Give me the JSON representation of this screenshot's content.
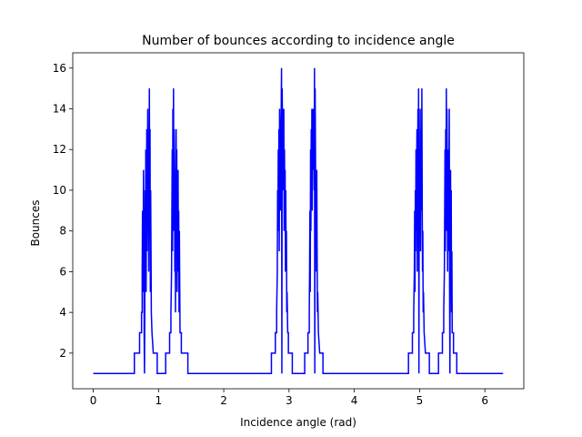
{
  "chart_data": {
    "type": "line",
    "title": "Number of bounces according to incidence angle",
    "xlabel": "Incidence angle (rad)",
    "ylabel": "Bounces",
    "xlim": [
      -0.314,
      6.597
    ],
    "ylim": [
      0.25,
      16.75
    ],
    "xticks": [
      0,
      1,
      2,
      3,
      4,
      5,
      6
    ],
    "yticks": [
      2,
      4,
      6,
      8,
      10,
      12,
      14,
      16
    ],
    "grid": false,
    "legend": "none",
    "series": [
      {
        "color": "#0000ff",
        "step": true,
        "points": [
          [
            0.0,
            1
          ],
          [
            0.63,
            1
          ],
          [
            0.63,
            2
          ],
          [
            0.71,
            2
          ],
          [
            0.71,
            3
          ],
          [
            0.74,
            3
          ],
          [
            0.74,
            4
          ],
          [
            0.75,
            4
          ],
          [
            0.75,
            6
          ],
          [
            0.755,
            9
          ],
          [
            0.76,
            5
          ],
          [
            0.765,
            7
          ],
          [
            0.77,
            11
          ],
          [
            0.775,
            8
          ],
          [
            0.78,
            3
          ],
          [
            0.785,
            1
          ],
          [
            0.79,
            4
          ],
          [
            0.795,
            10
          ],
          [
            0.8,
            6
          ],
          [
            0.805,
            12
          ],
          [
            0.81,
            5
          ],
          [
            0.815,
            9
          ],
          [
            0.82,
            13
          ],
          [
            0.825,
            7
          ],
          [
            0.83,
            10
          ],
          [
            0.835,
            14
          ],
          [
            0.84,
            8
          ],
          [
            0.845,
            12
          ],
          [
            0.85,
            6
          ],
          [
            0.855,
            11
          ],
          [
            0.86,
            15
          ],
          [
            0.865,
            9
          ],
          [
            0.87,
            13
          ],
          [
            0.875,
            5
          ],
          [
            0.88,
            10
          ],
          [
            0.885,
            7
          ],
          [
            0.89,
            4
          ],
          [
            0.9,
            3
          ],
          [
            0.92,
            2
          ],
          [
            0.98,
            2
          ],
          [
            0.98,
            1
          ],
          [
            1.11,
            1
          ],
          [
            1.11,
            2
          ],
          [
            1.17,
            2
          ],
          [
            1.17,
            3
          ],
          [
            1.19,
            3
          ],
          [
            1.19,
            4
          ],
          [
            1.2,
            6
          ],
          [
            1.205,
            9
          ],
          [
            1.21,
            12
          ],
          [
            1.215,
            7
          ],
          [
            1.22,
            14
          ],
          [
            1.225,
            10
          ],
          [
            1.23,
            15
          ],
          [
            1.235,
            8
          ],
          [
            1.24,
            13
          ],
          [
            1.245,
            11
          ],
          [
            1.25,
            6
          ],
          [
            1.255,
            9
          ],
          [
            1.26,
            4
          ],
          [
            1.265,
            10
          ],
          [
            1.27,
            13
          ],
          [
            1.275,
            7
          ],
          [
            1.28,
            12
          ],
          [
            1.285,
            5
          ],
          [
            1.29,
            10
          ],
          [
            1.295,
            8
          ],
          [
            1.3,
            11
          ],
          [
            1.305,
            6
          ],
          [
            1.31,
            9
          ],
          [
            1.315,
            4
          ],
          [
            1.32,
            8
          ],
          [
            1.33,
            3
          ],
          [
            1.35,
            3
          ],
          [
            1.35,
            2
          ],
          [
            1.45,
            2
          ],
          [
            1.45,
            1
          ],
          [
            2.73,
            1
          ],
          [
            2.73,
            2
          ],
          [
            2.79,
            2
          ],
          [
            2.79,
            3
          ],
          [
            2.81,
            3
          ],
          [
            2.81,
            4
          ],
          [
            2.82,
            6
          ],
          [
            2.825,
            10
          ],
          [
            2.83,
            8
          ],
          [
            2.835,
            12
          ],
          [
            2.84,
            9
          ],
          [
            2.845,
            13
          ],
          [
            2.85,
            7
          ],
          [
            2.855,
            14
          ],
          [
            2.86,
            11
          ],
          [
            2.865,
            12
          ],
          [
            2.87,
            9
          ],
          [
            2.875,
            13
          ],
          [
            2.88,
            14
          ],
          [
            2.885,
            16
          ],
          [
            2.89,
            1
          ],
          [
            2.895,
            15
          ],
          [
            2.9,
            13
          ],
          [
            2.905,
            10
          ],
          [
            2.91,
            14
          ],
          [
            2.915,
            11
          ],
          [
            2.92,
            14
          ],
          [
            2.925,
            8
          ],
          [
            2.93,
            12
          ],
          [
            2.935,
            9
          ],
          [
            2.94,
            11
          ],
          [
            2.945,
            6
          ],
          [
            2.95,
            10
          ],
          [
            2.955,
            7
          ],
          [
            2.96,
            8
          ],
          [
            2.965,
            4
          ],
          [
            2.97,
            5
          ],
          [
            2.98,
            3
          ],
          [
            2.99,
            3
          ],
          [
            2.99,
            2
          ],
          [
            3.05,
            2
          ],
          [
            3.05,
            1
          ],
          [
            3.08,
            1
          ],
          [
            3.24,
            1
          ],
          [
            3.24,
            2
          ],
          [
            3.29,
            2
          ],
          [
            3.29,
            3
          ],
          [
            3.31,
            3
          ],
          [
            3.31,
            4
          ],
          [
            3.315,
            6
          ],
          [
            3.32,
            9
          ],
          [
            3.325,
            5
          ],
          [
            3.33,
            12
          ],
          [
            3.335,
            8
          ],
          [
            3.34,
            13
          ],
          [
            3.345,
            10
          ],
          [
            3.35,
            14
          ],
          [
            3.355,
            9
          ],
          [
            3.36,
            12
          ],
          [
            3.365,
            14
          ],
          [
            3.37,
            11
          ],
          [
            3.375,
            13
          ],
          [
            3.38,
            14
          ],
          [
            3.385,
            10
          ],
          [
            3.39,
            16
          ],
          [
            3.395,
            1
          ],
          [
            3.4,
            15
          ],
          [
            3.405,
            12
          ],
          [
            3.41,
            8
          ],
          [
            3.415,
            10
          ],
          [
            3.42,
            6
          ],
          [
            3.425,
            11
          ],
          [
            3.43,
            7
          ],
          [
            3.435,
            4
          ],
          [
            3.44,
            5
          ],
          [
            3.45,
            3
          ],
          [
            3.47,
            2
          ],
          [
            3.52,
            2
          ],
          [
            3.52,
            1
          ],
          [
            4.83,
            1
          ],
          [
            4.83,
            2
          ],
          [
            4.89,
            2
          ],
          [
            4.89,
            3
          ],
          [
            4.91,
            3
          ],
          [
            4.91,
            4
          ],
          [
            4.92,
            6
          ],
          [
            4.925,
            9
          ],
          [
            4.93,
            5
          ],
          [
            4.935,
            10
          ],
          [
            4.94,
            7
          ],
          [
            4.945,
            12
          ],
          [
            4.95,
            8
          ],
          [
            4.955,
            11
          ],
          [
            4.96,
            13
          ],
          [
            4.965,
            6
          ],
          [
            4.97,
            10
          ],
          [
            4.975,
            14
          ],
          [
            4.98,
            9
          ],
          [
            4.985,
            15
          ],
          [
            4.99,
            1
          ],
          [
            4.995,
            12
          ],
          [
            5.0,
            8
          ],
          [
            5.005,
            10
          ],
          [
            5.01,
            14
          ],
          [
            5.015,
            7
          ],
          [
            5.02,
            11
          ],
          [
            5.025,
            13
          ],
          [
            5.03,
            9
          ],
          [
            5.035,
            15
          ],
          [
            5.04,
            10
          ],
          [
            5.045,
            6
          ],
          [
            5.05,
            8
          ],
          [
            5.055,
            4
          ],
          [
            5.06,
            5
          ],
          [
            5.07,
            3
          ],
          [
            5.09,
            2
          ],
          [
            5.15,
            2
          ],
          [
            5.15,
            1
          ],
          [
            5.29,
            1
          ],
          [
            5.29,
            2
          ],
          [
            5.35,
            2
          ],
          [
            5.35,
            3
          ],
          [
            5.37,
            3
          ],
          [
            5.37,
            4
          ],
          [
            5.38,
            6
          ],
          [
            5.385,
            9
          ],
          [
            5.39,
            12
          ],
          [
            5.395,
            7
          ],
          [
            5.4,
            13
          ],
          [
            5.405,
            10
          ],
          [
            5.41,
            15
          ],
          [
            5.415,
            8
          ],
          [
            5.42,
            14
          ],
          [
            5.425,
            11
          ],
          [
            5.43,
            6
          ],
          [
            5.435,
            12
          ],
          [
            5.44,
            9
          ],
          [
            5.445,
            7
          ],
          [
            5.45,
            10
          ],
          [
            5.455,
            14
          ],
          [
            5.46,
            5
          ],
          [
            5.465,
            1
          ],
          [
            5.47,
            8
          ],
          [
            5.475,
            11
          ],
          [
            5.48,
            6
          ],
          [
            5.485,
            10
          ],
          [
            5.49,
            4
          ],
          [
            5.495,
            7
          ],
          [
            5.5,
            3
          ],
          [
            5.52,
            3
          ],
          [
            5.52,
            2
          ],
          [
            5.57,
            2
          ],
          [
            5.57,
            1
          ],
          [
            5.65,
            1
          ],
          [
            6.28,
            1
          ]
        ]
      }
    ]
  }
}
